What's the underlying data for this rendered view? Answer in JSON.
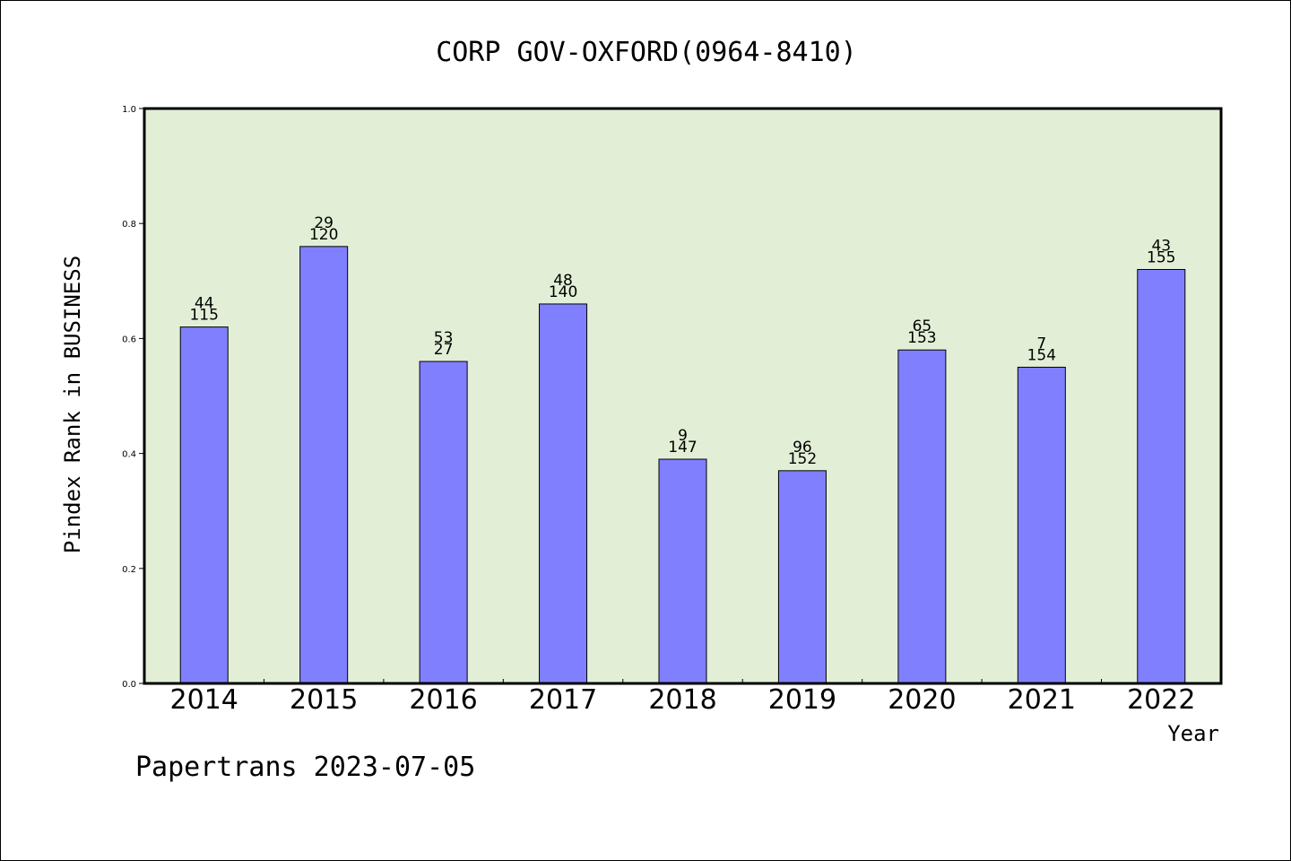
{
  "chart_data": {
    "type": "bar",
    "title": "CORP GOV-OXFORD(0964-8410)",
    "xlabel": "Year",
    "ylabel": "Pindex Rank in BUSINESS",
    "footer": "Papertrans 2023-07-05",
    "ylim": [
      0.0,
      1.0
    ],
    "yticks": [
      "0.0",
      "0.2",
      "0.4",
      "0.6",
      "0.8",
      "1.0"
    ],
    "categories": [
      "2014",
      "2015",
      "2016",
      "2017",
      "2018",
      "2019",
      "2020",
      "2021",
      "2022"
    ],
    "values": [
      0.62,
      0.76,
      0.56,
      0.66,
      0.39,
      0.37,
      0.58,
      0.55,
      0.72
    ],
    "labels_top": [
      "44",
      "29",
      "53",
      "48",
      "9",
      "96",
      "65",
      "7",
      "43"
    ],
    "labels_bottom": [
      "115",
      "120",
      "27",
      "140",
      "147",
      "152",
      "153",
      "154",
      "155"
    ],
    "grid": false,
    "colors": {
      "plot_background": "#e2efd6",
      "bar_fill": "#8080ff",
      "bar_stroke": "#000000"
    }
  }
}
